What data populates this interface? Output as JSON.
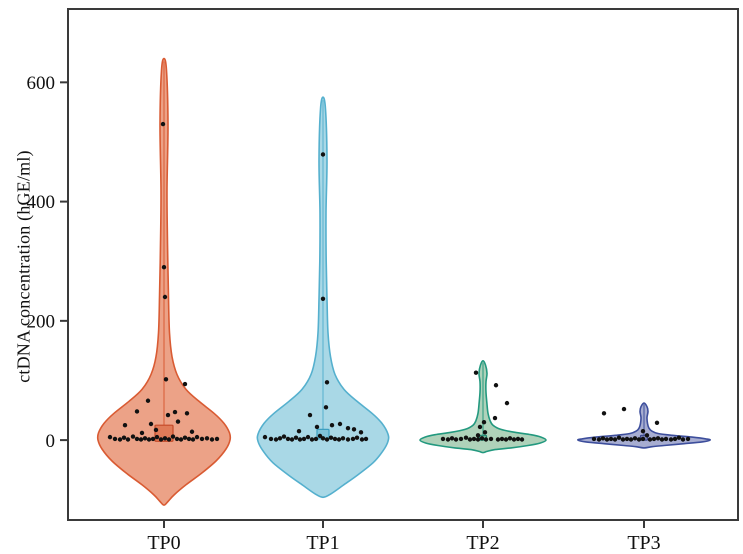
{
  "chart_data": {
    "type": "violin",
    "title": "",
    "ylabel": "ctDNA concentration (hGE/ml)",
    "xlabel": "",
    "categories": [
      "TP0",
      "TP1",
      "TP2",
      "TP3"
    ],
    "yticks": [
      0,
      200,
      400,
      600
    ],
    "ylim": [
      -134,
      723
    ],
    "grid": false,
    "legend": "none",
    "axis_color": "#3a3a3a",
    "point_color": "#111111",
    "series": [
      {
        "name": "TP0",
        "fill": "#ECA287",
        "stroke": "#D95B33",
        "box_fill": "#E07B58",
        "box_stroke": "#C44A28",
        "spike_line": {
          "top": 635,
          "bottom": 0
        },
        "box": {
          "top": 25,
          "bottom": -2,
          "half_width": 9
        },
        "profile": [
          [
            640,
            0
          ],
          [
            620,
            2.5
          ],
          [
            530,
            4
          ],
          [
            420,
            3
          ],
          [
            330,
            3.5
          ],
          [
            240,
            4.5
          ],
          [
            180,
            5.5
          ],
          [
            140,
            8
          ],
          [
            110,
            13
          ],
          [
            85,
            22
          ],
          [
            65,
            35
          ],
          [
            45,
            50
          ],
          [
            28,
            60
          ],
          [
            12,
            65.5
          ],
          [
            0,
            66
          ],
          [
            -15,
            62
          ],
          [
            -35,
            52
          ],
          [
            -55,
            38
          ],
          [
            -75,
            22
          ],
          [
            -92,
            10
          ],
          [
            -103,
            4
          ],
          [
            -109,
            0
          ]
        ],
        "points": [
          [
            530,
            -1
          ],
          [
            290,
            0
          ],
          [
            240,
            1
          ],
          [
            102,
            2
          ],
          [
            94,
            21
          ],
          [
            66,
            -16
          ],
          [
            48,
            -27
          ],
          [
            47,
            11
          ],
          [
            45,
            23
          ],
          [
            42,
            4
          ],
          [
            31,
            14
          ],
          [
            27,
            -13
          ],
          [
            25,
            -39
          ],
          [
            17,
            -8
          ],
          [
            14,
            28
          ],
          [
            12,
            -22
          ],
          [
            5,
            -54
          ],
          [
            2,
            -49
          ],
          [
            1,
            -44
          ],
          [
            4,
            -40
          ],
          [
            1,
            -36
          ],
          [
            6,
            -31
          ],
          [
            2,
            -27
          ],
          [
            1,
            -23
          ],
          [
            3,
            -19
          ],
          [
            1,
            -15
          ],
          [
            2,
            -11
          ],
          [
            5,
            -7
          ],
          [
            1,
            -3
          ],
          [
            3,
            1
          ],
          [
            1,
            5
          ],
          [
            6,
            9
          ],
          [
            2,
            13
          ],
          [
            1,
            17
          ],
          [
            4,
            21
          ],
          [
            2,
            25
          ],
          [
            1,
            29
          ],
          [
            5,
            33
          ],
          [
            2,
            38
          ],
          [
            3,
            43
          ],
          [
            1,
            48
          ],
          [
            2,
            53
          ]
        ]
      },
      {
        "name": "TP1",
        "fill": "#A9D8E6",
        "stroke": "#55B0CE",
        "box_fill": "#7FC3DA",
        "box_stroke": "#3E9FC0",
        "spike_line": {
          "top": 570,
          "bottom": 0
        },
        "box": {
          "top": 18,
          "bottom": 2,
          "half_width": 6
        },
        "profile": [
          [
            575,
            0
          ],
          [
            555,
            2.5
          ],
          [
            470,
            4
          ],
          [
            380,
            3
          ],
          [
            300,
            3.2
          ],
          [
            237,
            4
          ],
          [
            180,
            5
          ],
          [
            140,
            7.5
          ],
          [
            110,
            12
          ],
          [
            85,
            21
          ],
          [
            65,
            34
          ],
          [
            45,
            49
          ],
          [
            28,
            59
          ],
          [
            10,
            65
          ],
          [
            -2,
            65
          ],
          [
            -18,
            60
          ],
          [
            -38,
            50
          ],
          [
            -58,
            35
          ],
          [
            -76,
            20
          ],
          [
            -90,
            8
          ],
          [
            -96,
            0
          ]
        ],
        "points": [
          [
            479,
            0
          ],
          [
            237,
            0
          ],
          [
            97,
            4
          ],
          [
            55,
            3
          ],
          [
            42,
            -13
          ],
          [
            27,
            17
          ],
          [
            25,
            9
          ],
          [
            22,
            -6
          ],
          [
            20,
            25
          ],
          [
            18,
            31
          ],
          [
            15,
            -24
          ],
          [
            13,
            38
          ],
          [
            5,
            -58
          ],
          [
            2,
            -52
          ],
          [
            1,
            -47
          ],
          [
            3,
            -43
          ],
          [
            6,
            -39
          ],
          [
            2,
            -35
          ],
          [
            1,
            -31
          ],
          [
            4,
            -27
          ],
          [
            1,
            -23
          ],
          [
            2,
            -19
          ],
          [
            5,
            -15
          ],
          [
            1,
            -11
          ],
          [
            2,
            -7
          ],
          [
            7,
            -3
          ],
          [
            3,
            0
          ],
          [
            1,
            4
          ],
          [
            4,
            8
          ],
          [
            2,
            12
          ],
          [
            1,
            16
          ],
          [
            3,
            20
          ],
          [
            1,
            25
          ],
          [
            2,
            30
          ],
          [
            4,
            34
          ],
          [
            1,
            39
          ],
          [
            2,
            43
          ]
        ]
      },
      {
        "name": "TP2",
        "fill": "#AFD2BA",
        "stroke": "#23997F",
        "box_fill": "#6FB898",
        "box_stroke": "#1F8A74",
        "spike_line": {
          "top": 130,
          "bottom": 0
        },
        "box": {
          "top": 8,
          "bottom": 0,
          "half_width": 3.5
        },
        "profile": [
          [
            133,
            0
          ],
          [
            126,
            2.5
          ],
          [
            112,
            4
          ],
          [
            98,
            3
          ],
          [
            80,
            3
          ],
          [
            60,
            4
          ],
          [
            45,
            5
          ],
          [
            33,
            7
          ],
          [
            25,
            10
          ],
          [
            18,
            18
          ],
          [
            13,
            32
          ],
          [
            9,
            48
          ],
          [
            5,
            58
          ],
          [
            0,
            63
          ],
          [
            -5,
            57
          ],
          [
            -9,
            45
          ],
          [
            -13,
            28
          ],
          [
            -16,
            12
          ],
          [
            -19,
            4
          ],
          [
            -21,
            0
          ]
        ],
        "points": [
          [
            113,
            -7
          ],
          [
            92,
            13
          ],
          [
            62,
            24
          ],
          [
            37,
            12
          ],
          [
            30,
            1
          ],
          [
            22,
            -3
          ],
          [
            13,
            2
          ],
          [
            8,
            -5
          ],
          [
            2,
            -40
          ],
          [
            1,
            -35
          ],
          [
            3,
            -31
          ],
          [
            1,
            -27
          ],
          [
            2,
            -22
          ],
          [
            4,
            -17
          ],
          [
            1,
            -13
          ],
          [
            2,
            -9
          ],
          [
            1,
            -5
          ],
          [
            3,
            -1
          ],
          [
            1,
            3
          ],
          [
            2,
            8
          ],
          [
            1,
            15
          ],
          [
            2,
            19
          ],
          [
            1,
            23
          ],
          [
            3,
            27
          ],
          [
            1,
            31
          ],
          [
            2,
            35
          ],
          [
            1,
            39
          ]
        ]
      },
      {
        "name": "TP3",
        "fill": "#A7ADD1",
        "stroke": "#3D4E9C",
        "box_fill": "#7C85B8",
        "box_stroke": "#39468C",
        "spike_line": {
          "top": 60,
          "bottom": 0
        },
        "box": {
          "top": 8,
          "bottom": 0,
          "half_width": 3.5
        },
        "profile": [
          [
            62,
            0
          ],
          [
            56,
            3
          ],
          [
            48,
            4
          ],
          [
            38,
            3
          ],
          [
            28,
            3.5
          ],
          [
            20,
            5
          ],
          [
            15,
            8
          ],
          [
            11,
            14
          ],
          [
            8,
            28
          ],
          [
            5,
            48
          ],
          [
            2,
            62
          ],
          [
            0,
            66
          ],
          [
            -3,
            58
          ],
          [
            -6,
            40
          ],
          [
            -9,
            20
          ],
          [
            -11,
            8
          ],
          [
            -13,
            0
          ]
        ],
        "points": [
          [
            52,
            -20
          ],
          [
            45,
            -40
          ],
          [
            29,
            13
          ],
          [
            15,
            -1
          ],
          [
            8,
            3
          ],
          [
            2,
            -50
          ],
          [
            1,
            -45
          ],
          [
            3,
            -41
          ],
          [
            1,
            -37
          ],
          [
            2,
            -33
          ],
          [
            1,
            -29
          ],
          [
            4,
            -25
          ],
          [
            1,
            -21
          ],
          [
            2,
            -17
          ],
          [
            1,
            -13
          ],
          [
            3,
            -9
          ],
          [
            1,
            -5
          ],
          [
            2,
            -1
          ],
          [
            1,
            6
          ],
          [
            2,
            10
          ],
          [
            3,
            14
          ],
          [
            1,
            18
          ],
          [
            2,
            22
          ],
          [
            1,
            27
          ],
          [
            2,
            31
          ],
          [
            4,
            35
          ],
          [
            1,
            39
          ],
          [
            2,
            44
          ]
        ]
      }
    ]
  }
}
